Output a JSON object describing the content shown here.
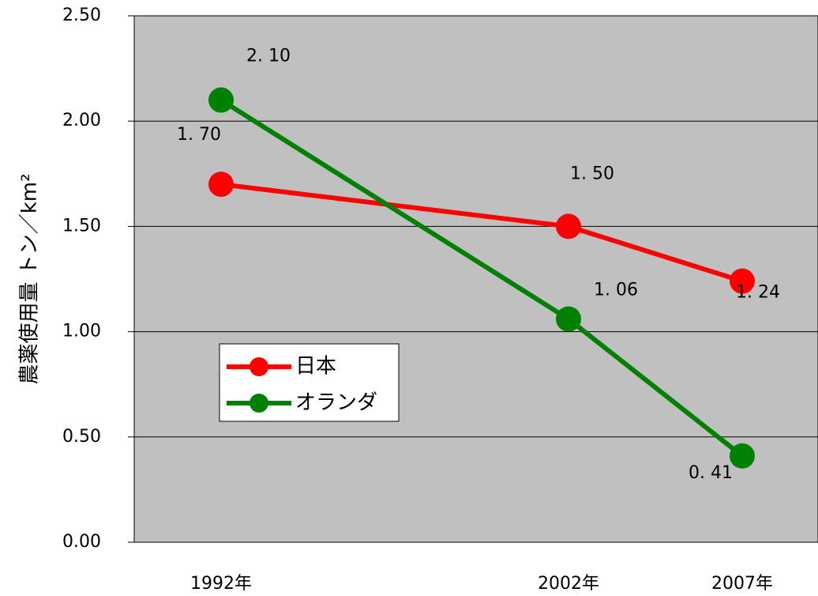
{
  "chart_data": {
    "type": "line",
    "y_label": "農薬使用量 トン／km²",
    "x": [
      1992,
      2002,
      2007
    ],
    "xlim": [
      1989.5,
      2009.5
    ],
    "xticks": [
      {
        "value": 1992,
        "label": "1992年"
      },
      {
        "value": 2002,
        "label": "2002年"
      },
      {
        "value": 2007,
        "label": "2007年"
      }
    ],
    "ylim": [
      0,
      2.5
    ],
    "yticks": [
      {
        "value": 0,
        "label": "0.00"
      },
      {
        "value": 0.5,
        "label": "0.50"
      },
      {
        "value": 1,
        "label": "1.00"
      },
      {
        "value": 1.5,
        "label": "1.50"
      },
      {
        "value": 2,
        "label": "2.00"
      },
      {
        "value": 2.5,
        "label": "2.50"
      }
    ],
    "grid": true,
    "series": [
      {
        "name": "日本",
        "color": "#ff0000",
        "values": [
          1.7,
          1.5,
          1.24
        ],
        "value_labels": [
          "1. 70",
          "1. 50",
          "1. 24"
        ]
      },
      {
        "name": "オランダ",
        "color": "#008000",
        "values": [
          2.1,
          1.06,
          0.41
        ],
        "value_labels": [
          "2. 10",
          "1. 06",
          "0. 41"
        ]
      }
    ]
  }
}
